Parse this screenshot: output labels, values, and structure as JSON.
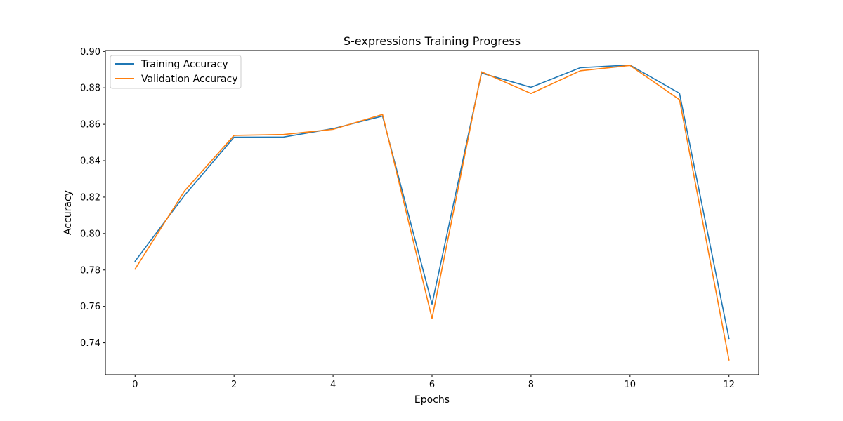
{
  "chart_data": {
    "type": "line",
    "title": "S-expressions Training Progress",
    "xlabel": "Epochs",
    "ylabel": "Accuracy",
    "x": [
      0,
      1,
      2,
      3,
      4,
      5,
      6,
      7,
      8,
      9,
      10,
      11,
      12
    ],
    "xlim": [
      -0.6,
      12.6
    ],
    "ylim": [
      0.7225,
      0.9005
    ],
    "xticks": [
      0,
      2,
      4,
      6,
      8,
      10,
      12
    ],
    "xtick_labels": [
      "0",
      "2",
      "4",
      "6",
      "8",
      "10",
      "12"
    ],
    "yticks": [
      0.74,
      0.76,
      0.78,
      0.8,
      0.82,
      0.84,
      0.86,
      0.88,
      0.9
    ],
    "ytick_labels": [
      "0.74",
      "0.76",
      "0.78",
      "0.80",
      "0.82",
      "0.84",
      "0.86",
      "0.88",
      "0.90"
    ],
    "grid": false,
    "legend_position": "top-left",
    "series": [
      {
        "name": "Training Accuracy",
        "color": "#1f77b4",
        "values": [
          0.7848,
          0.821,
          0.8529,
          0.853,
          0.8576,
          0.8645,
          0.7613,
          0.8881,
          0.8803,
          0.8911,
          0.8925,
          0.877,
          0.7424
        ]
      },
      {
        "name": "Validation Accuracy",
        "color": "#ff7f0e",
        "values": [
          0.7805,
          0.8234,
          0.8539,
          0.8544,
          0.8572,
          0.8654,
          0.7534,
          0.8888,
          0.8769,
          0.8894,
          0.8923,
          0.8735,
          0.7306
        ]
      }
    ]
  }
}
